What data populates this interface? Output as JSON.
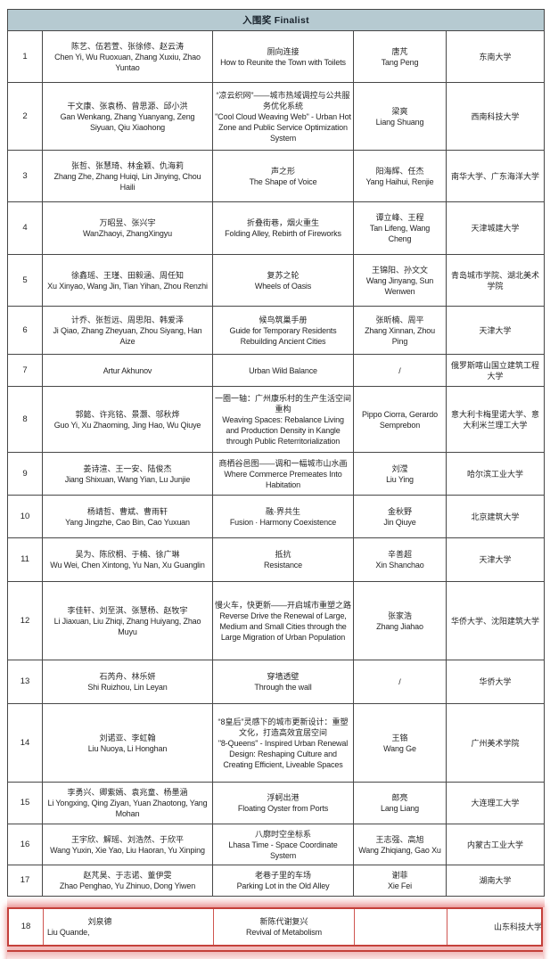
{
  "header": {
    "title": "入围奖 Finalist"
  },
  "colors": {
    "header_bg": "#b6cad1",
    "grid_border": "#474747",
    "text": "#242424",
    "highlight_border": "#c4403a",
    "highlight_glow": "#f2c2c2"
  },
  "highlighted_row_no": "18",
  "rows": [
    {
      "no": "1",
      "names_cn": "陈艺、伍若萱、张徐修、赵云涛",
      "names_en": "Chen Yi, Wu Ruoxuan, Zhang Xuxiu, Zhao Yuntao",
      "project_cn": "厕向连接",
      "project_en": "How to Reunite the Town with Toilets",
      "advisors_cn": "唐芃",
      "advisors_en": "Tang Peng",
      "university": "东南大学",
      "highlighted": false
    },
    {
      "no": "2",
      "names_cn": "干文康、张袁杨、曾思源、邱小洪",
      "names_en": "Gan Wenkang, Zhang Yuanyang, Zeng Siyuan, Qiu Xiaohong",
      "project_cn": "“凉云织网”——城市热域调控与公共服务优化系统",
      "project_en": "\"Cool Cloud Weaving Web\" - Urban Hot Zone and Public Service Optimization System",
      "advisors_cn": "梁爽",
      "advisors_en": "Liang Shuang",
      "university": "西南科技大学",
      "highlighted": false
    },
    {
      "no": "3",
      "names_cn": "张哲、张慧琦、林金颖、仇海莉",
      "names_en": "Zhang Zhe, Zhang Huiqi, Lin Jinying, Chou Haili",
      "project_cn": "声之形",
      "project_en": "The Shape of Voice",
      "advisors_cn": "阳海辉、任杰",
      "advisors_en": "Yang Haihui, Renjie",
      "university": "南华大学、广东海洋大学",
      "highlighted": false
    },
    {
      "no": "4",
      "names_cn": "万昭昱、张兴宇",
      "names_en": "WanZhaoyi, ZhangXingyu",
      "project_cn": "折叠街巷，烟火重生",
      "project_en": "Folding Alley, Rebirth of Fireworks",
      "advisors_cn": "谭立峰、王程",
      "advisors_en": "Tan Lifeng, Wang Cheng",
      "university": "天津城建大学",
      "highlighted": false
    },
    {
      "no": "5",
      "names_cn": "徐鑫瑶、王瑾、田毅涵、周任知",
      "names_en": "Xu Xinyao, Wang Jin, Tian Yihan, Zhou Renzhi",
      "project_cn": "复苏之轮",
      "project_en": "Wheels of Oasis",
      "advisors_cn": "王锦阳、孙文文",
      "advisors_en": "Wang Jinyang, Sun Wenwen",
      "university": "青岛城市学院、湖北美术学院",
      "highlighted": false
    },
    {
      "no": "6",
      "names_cn": "计乔、张哲远、周思阳、韩爱泽",
      "names_en": "Ji Qiao, Zhang Zheyuan, Zhou Siyang, Han Aize",
      "project_cn": "候鸟筑巢手册",
      "project_en": "Guide for Temporary Residents Rebuilding Ancient Cities",
      "advisors_cn": "张昕楠、周平",
      "advisors_en": "Zhang Xinnan, Zhou Ping",
      "university": "天津大学",
      "highlighted": false
    },
    {
      "no": "7",
      "names_cn": "",
      "names_en": "Artur Akhunov",
      "project_cn": "",
      "project_en": "Urban Wild Balance",
      "advisors_cn": "/",
      "advisors_en": "",
      "university": "俄罗斯喀山国立建筑工程大学",
      "highlighted": false
    },
    {
      "no": "8",
      "names_cn": "郭懿、许兆铭、景灏、邬秋烨",
      "names_en": "Guo Yi, Xu Zhaoming, Jing Hao, Wu Qiuye",
      "project_cn": "一圈一轴：广州康乐村的生产生活空间重构",
      "project_en": "Weaving Spaces: Rebalance Living and Production Density in Kangle through Public Reterritorialization",
      "advisors_cn": "",
      "advisors_en": "Pippo Ciorra, Gerardo Semprebon",
      "university": "意大利卡梅里诺大学、意大利米兰理工大学",
      "highlighted": false
    },
    {
      "no": "9",
      "names_cn": "姜诗渲、王一安、陆俊杰",
      "names_en": "Jiang Shixuan, Wang Yian, Lu Junjie",
      "project_cn": "商栖谷邑图——调和一幅城市山水画",
      "project_en": "Where Commerce Premeates Into Habitation",
      "advisors_cn": "刘滢",
      "advisors_en": "Liu Ying",
      "university": "哈尔滨工业大学",
      "highlighted": false
    },
    {
      "no": "10",
      "names_cn": "杨靖哲、曹斌、曹雨轩",
      "names_en": "Yang Jingzhe, Cao Bin, Cao Yuxuan",
      "project_cn": "融·界共生",
      "project_en": "Fusion · Harmony Coexistence",
      "advisors_cn": "金秋野",
      "advisors_en": "Jin Qiuye",
      "university": "北京建筑大学",
      "highlighted": false
    },
    {
      "no": "11",
      "names_cn": "吴为、陈欣桐、于楠、徐广琳",
      "names_en": "Wu Wei, Chen Xintong, Yu Nan, Xu Guanglin",
      "project_cn": "抵抗",
      "project_en": "Resistance",
      "advisors_cn": "辛善超",
      "advisors_en": "Xin Shanchao",
      "university": "天津大学",
      "highlighted": false
    },
    {
      "no": "12",
      "names_cn": "李佳轩、刘至淇、张慧杨、赵牧宇",
      "names_en": "Li Jiaxuan, Liu Zhiqi, Zhang Huiyang, Zhao Muyu",
      "project_cn": "慢火车，快更新——开启城市重塑之路",
      "project_en": "Reverse Drive the Renewal of Large, Medium and Small Cities through the Large Migration of Urban Population",
      "advisors_cn": "张家浩",
      "advisors_en": "Zhang Jiahao",
      "university": "华侨大学、沈阳建筑大学",
      "highlighted": false
    },
    {
      "no": "13",
      "names_cn": "石芮舟、林乐妍",
      "names_en": "Shi Ruizhou, Lin Leyan",
      "project_cn": "穿墙透壁",
      "project_en": "Through the wall",
      "advisors_cn": "/",
      "advisors_en": "",
      "university": "华侨大学",
      "highlighted": false
    },
    {
      "no": "14",
      "names_cn": "刘诺亚、李虹翰",
      "names_en": "Liu Nuoya, Li Honghan",
      "project_cn": "“8皇后”灵感下的城市更新设计：重塑文化，打造高效宜居空间",
      "project_en": "\"8-Queens\" - Inspired Urban Renewal Design: Reshaping Culture and Creating Efficient, Liveable Spaces",
      "advisors_cn": "王铬",
      "advisors_en": "Wang Ge",
      "university": "广州美术学院",
      "highlighted": false
    },
    {
      "no": "15",
      "names_cn": "李勇兴、卿紫嫣、袁兆童、杨墨涵",
      "names_en": "Li Yongxing, Qing Ziyan, Yuan Zhaotong, Yang Mohan",
      "project_cn": "浮蚵出港",
      "project_en": "Floating Oyster from Ports",
      "advisors_cn": "郎亮",
      "advisors_en": "Lang Liang",
      "university": "大连理工大学",
      "highlighted": false
    },
    {
      "no": "16",
      "names_cn": "王宇欣、解瑶、刘浩然、于欣平",
      "names_en": "Wang Yuxin, Xie Yao, Liu Haoran, Yu Xinping",
      "project_cn": "八廓时空坐标系",
      "project_en": "Lhasa Time - Space Coordinate System",
      "advisors_cn": "王志强、高旭",
      "advisors_en": "Wang Zhiqiang, Gao Xu",
      "university": "内蒙古工业大学",
      "highlighted": false
    },
    {
      "no": "17",
      "names_cn": "赵芃昊、于志诺、董伊雯",
      "names_en": "Zhao Penghao, Yu Zhinuo, Dong Yiwen",
      "project_cn": "老巷子里的车场",
      "project_en": "Parking Lot in the Old Alley",
      "advisors_cn": "谢菲",
      "advisors_en": "Xie Fei",
      "university": "湖南大学",
      "highlighted": false
    },
    {
      "no": "18",
      "names_cn": "刘泉德",
      "names_en": "Liu Quande,",
      "project_cn": "新陈代谢复兴",
      "project_en": "Revival of Metabolism",
      "advisors_cn": "",
      "advisors_en": "",
      "university": "山东科技大学",
      "highlighted": true
    }
  ]
}
